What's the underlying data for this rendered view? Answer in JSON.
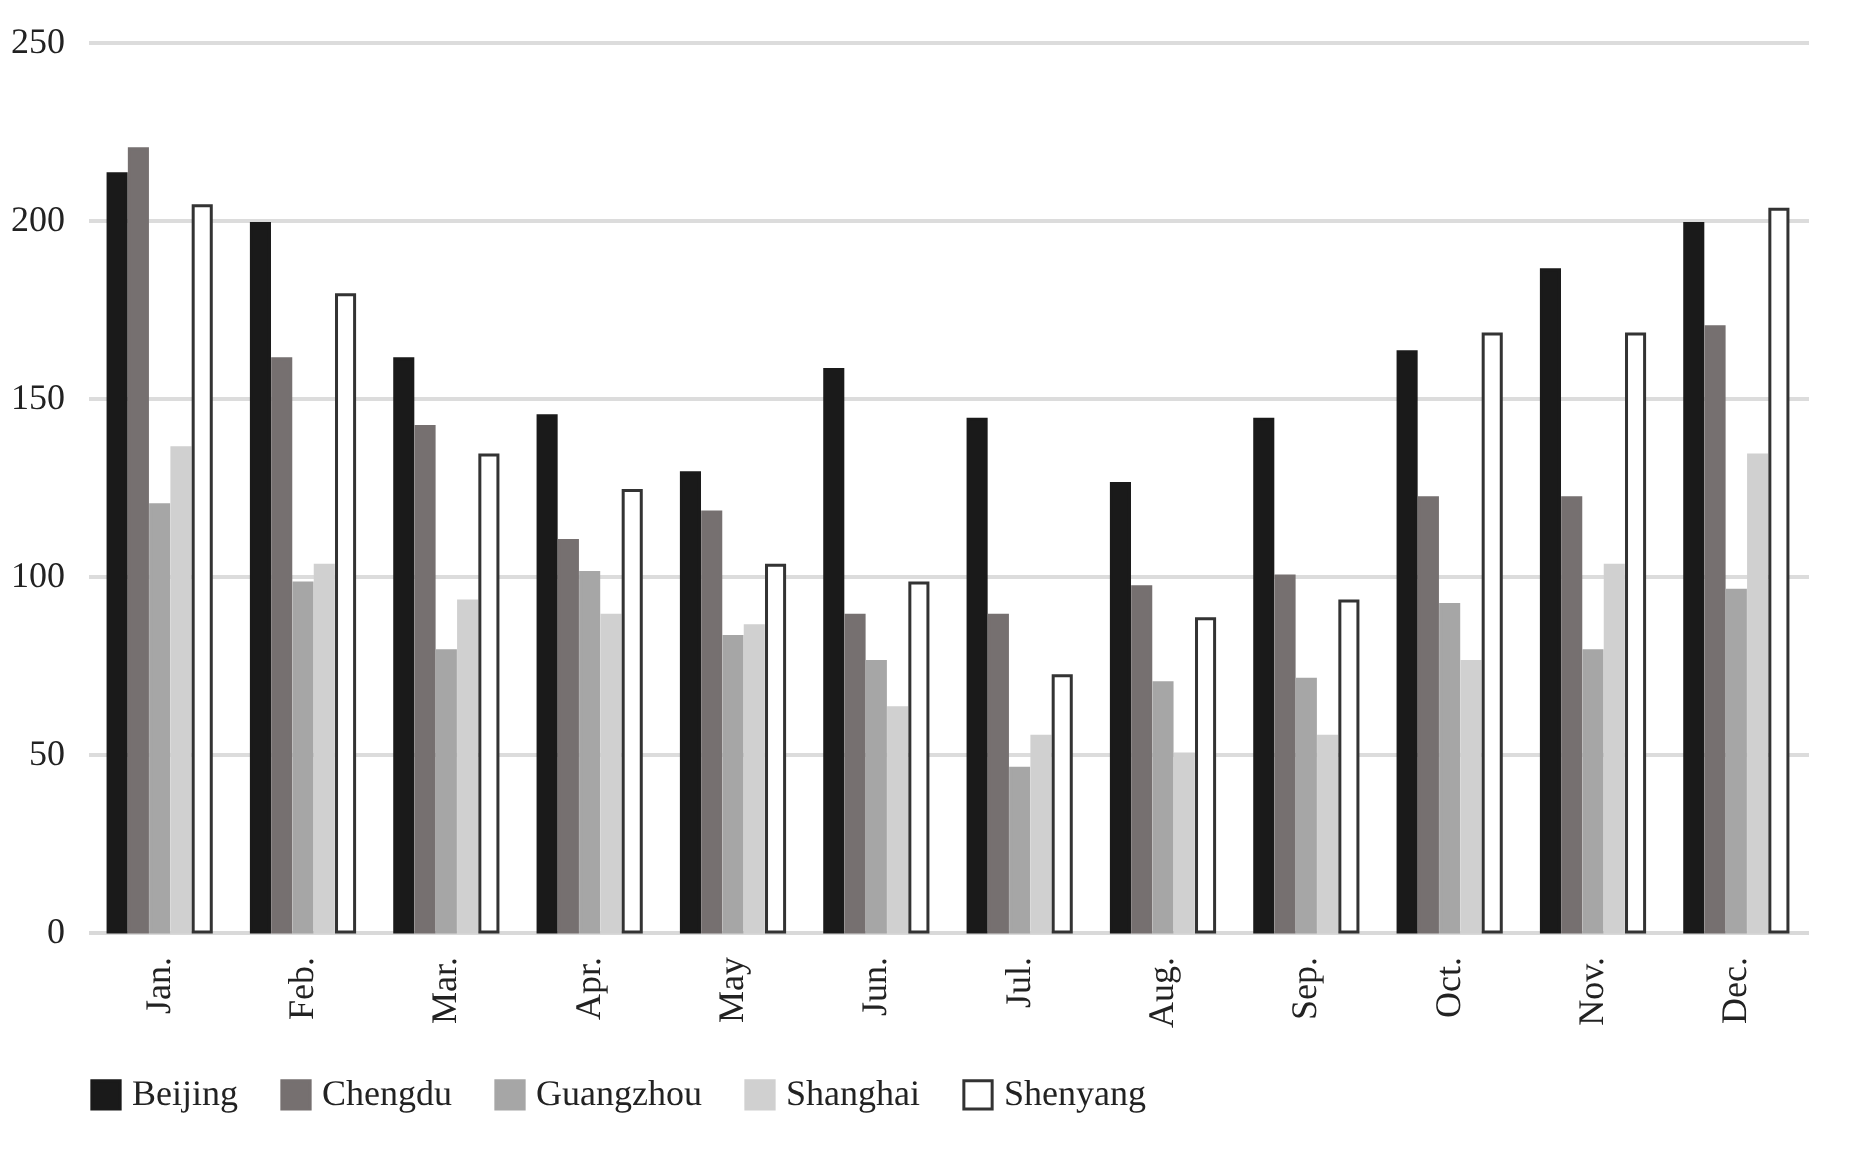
{
  "chart_data": {
    "type": "bar",
    "categories": [
      "Jan.",
      "Feb.",
      "Mar.",
      "Apr.",
      "May",
      "Jun.",
      "Jul.",
      "Aug.",
      "Sep.",
      "Oct.",
      "Nov.",
      "Dec."
    ],
    "series": [
      {
        "name": "Beijing",
        "color": "#1a1a1a",
        "values": [
          213,
          199,
          161,
          145,
          129,
          158,
          144,
          126,
          144,
          163,
          186,
          199
        ]
      },
      {
        "name": "Chengdu",
        "color": "#767070",
        "values": [
          220,
          161,
          142,
          110,
          118,
          89,
          89,
          97,
          100,
          122,
          122,
          170
        ]
      },
      {
        "name": "Guangzhou",
        "color": "#a6a6a6",
        "values": [
          120,
          98,
          79,
          101,
          83,
          76,
          46,
          70,
          71,
          92,
          79,
          96
        ]
      },
      {
        "name": "Shanghai",
        "color": "#d0d0d0",
        "values": [
          136,
          103,
          93,
          89,
          86,
          63,
          55,
          50,
          55,
          76,
          103,
          134
        ]
      },
      {
        "name": "Shenyang",
        "color": "#ffffff",
        "values": [
          204,
          179,
          134,
          124,
          103,
          98,
          72,
          88,
          93,
          168,
          168,
          203
        ]
      }
    ],
    "ylim": [
      0,
      250
    ],
    "yticks": [
      0,
      50,
      100,
      150,
      200,
      250
    ],
    "grid": "y",
    "legend": "bottom"
  }
}
